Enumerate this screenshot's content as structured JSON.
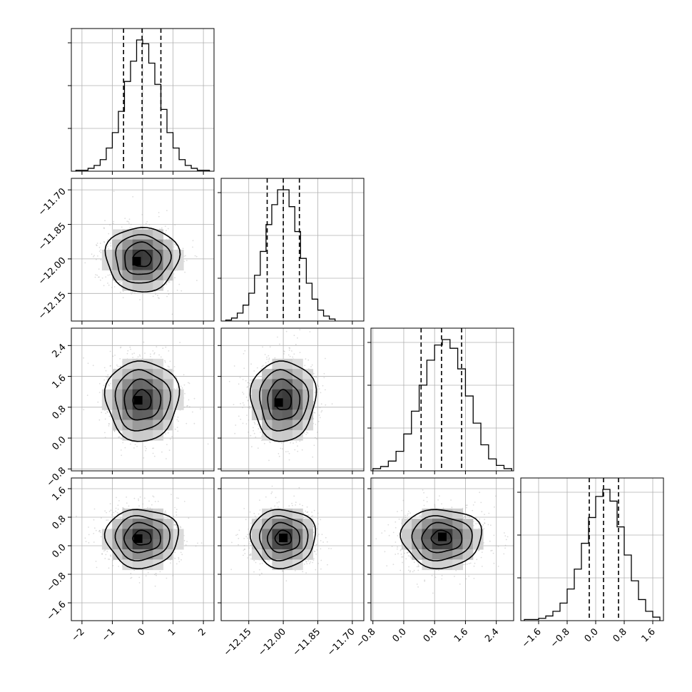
{
  "chart_data": {
    "type": "corner",
    "colors": {
      "line": "#000000",
      "grid": "#b0b0b0",
      "scatter": "#9a9a9a"
    },
    "parameters": [
      {
        "index": 0,
        "range": [
          -2.35,
          2.35
        ],
        "ticks": [
          "−2",
          "−1",
          "0",
          "1",
          "2"
        ],
        "tick_values": [
          -2,
          -1,
          0,
          1,
          2
        ],
        "quantiles": [
          -0.63,
          -0.02,
          0.6
        ],
        "hist_peak": 0.06
      },
      {
        "index": 1,
        "range": [
          -12.27,
          -11.65
        ],
        "ticks": [
          "−12.15",
          "−12.00",
          "−11.85",
          "−11.70"
        ],
        "tick_values": [
          -12.15,
          -12.0,
          -11.85,
          -11.7
        ],
        "quantiles": [
          -12.07,
          -12.0,
          -11.93
        ],
        "hist_peak": 0.05
      },
      {
        "index": 2,
        "range": [
          -0.85,
          2.85
        ],
        "ticks": [
          "−0.8",
          "0.0",
          "0.8",
          "1.6",
          "2.4"
        ],
        "tick_values": [
          -0.8,
          0.0,
          0.8,
          1.6,
          2.4
        ],
        "quantiles": [
          0.45,
          0.98,
          1.5
        ],
        "hist_peak": 0.9
      },
      {
        "index": 3,
        "range": [
          -2.1,
          1.9
        ],
        "ticks": [
          "−1.6",
          "−0.8",
          "0.0",
          "0.8",
          "1.6"
        ],
        "tick_values": [
          -1.6,
          -0.8,
          0.0,
          0.8,
          1.6
        ],
        "quantiles": [
          -0.18,
          0.22,
          0.64
        ],
        "hist_peak": 1.0
      }
    ],
    "histograms": [
      {
        "param": 0,
        "bin_edges": [
          -2.2,
          -2.0,
          -1.8,
          -1.6,
          -1.4,
          -1.2,
          -1.0,
          -0.8,
          -0.6,
          -0.4,
          -0.2,
          0.0,
          0.2,
          0.4,
          0.6,
          0.8,
          1.0,
          1.2,
          1.4,
          1.6,
          1.8,
          2.0,
          2.2
        ],
        "counts": [
          1,
          1,
          3,
          6,
          12,
          24,
          40,
          62,
          93,
          114,
          136,
          132,
          112,
          90,
          64,
          40,
          24,
          12,
          6,
          3,
          1,
          1
        ]
      },
      {
        "param": 1,
        "bin_edges": [
          -12.25,
          -12.225,
          -12.2,
          -12.175,
          -12.15,
          -12.125,
          -12.1,
          -12.075,
          -12.05,
          -12.025,
          -12.0,
          -11.975,
          -11.95,
          -11.925,
          -11.9,
          -11.875,
          -11.85,
          -11.825,
          -11.8,
          -11.775
        ],
        "counts": [
          1,
          3,
          8,
          16,
          28,
          46,
          70,
          97,
          117,
          132,
          132,
          115,
          90,
          63,
          38,
          22,
          11,
          5,
          2
        ]
      },
      {
        "param": 2,
        "bin_edges": [
          -0.8,
          -0.6,
          -0.4,
          -0.2,
          0.0,
          0.2,
          0.4,
          0.6,
          0.8,
          1.0,
          1.2,
          1.4,
          1.6,
          1.8,
          2.0,
          2.2,
          2.4,
          2.6,
          2.8
        ],
        "counts": [
          2,
          4,
          9,
          18,
          34,
          55,
          79,
          102,
          116,
          121,
          113,
          94,
          69,
          44,
          24,
          11,
          5,
          2
        ]
      },
      {
        "param": 3,
        "bin_edges": [
          -2.0,
          -1.8,
          -1.6,
          -1.4,
          -1.2,
          -1.0,
          -0.8,
          -0.6,
          -0.4,
          -0.2,
          0.0,
          0.2,
          0.4,
          0.6,
          0.8,
          1.0,
          1.2,
          1.4,
          1.6,
          1.8
        ],
        "counts": [
          1,
          1,
          2,
          4,
          8,
          15,
          27,
          44,
          66,
          88,
          106,
          112,
          102,
          80,
          56,
          34,
          18,
          8,
          3
        ]
      }
    ],
    "pairs": [
      {
        "x_param": 0,
        "y_param": 1,
        "center": [
          -0.02,
          -12.0
        ],
        "sigma": [
          0.6,
          0.07
        ],
        "peak": [
          -0.2,
          -12.01
        ]
      },
      {
        "x_param": 0,
        "y_param": 2,
        "center": [
          -0.02,
          0.98
        ],
        "sigma": [
          0.6,
          0.52
        ],
        "peak": [
          -0.15,
          0.98
        ]
      },
      {
        "x_param": 1,
        "y_param": 2,
        "center": [
          -12.0,
          0.98
        ],
        "sigma": [
          0.07,
          0.52
        ],
        "peak": [
          -12.02,
          0.92
        ]
      },
      {
        "x_param": 0,
        "y_param": 3,
        "center": [
          -0.02,
          0.22
        ],
        "sigma": [
          0.6,
          0.41
        ],
        "peak": [
          -0.15,
          0.2
        ]
      },
      {
        "x_param": 1,
        "y_param": 3,
        "center": [
          -12.0,
          0.22
        ],
        "sigma": [
          0.07,
          0.41
        ],
        "peak": [
          -12.0,
          0.22
        ]
      },
      {
        "x_param": 2,
        "y_param": 3,
        "center": [
          0.98,
          0.22
        ],
        "sigma": [
          0.52,
          0.41
        ],
        "peak": [
          1.0,
          0.25
        ]
      }
    ],
    "contour_sigma_levels": [
      0.5,
      1.0,
      1.5,
      2.0
    ],
    "grid": true,
    "scatter_points": 1200
  }
}
